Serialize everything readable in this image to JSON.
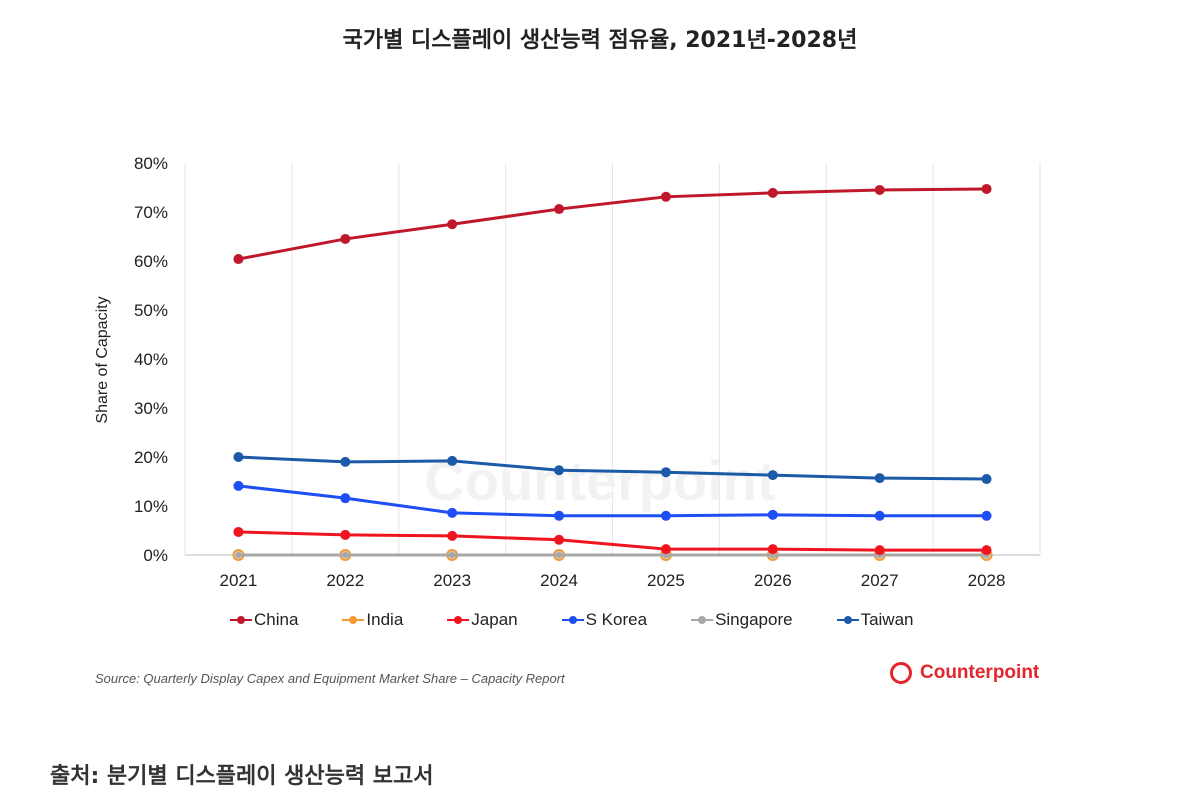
{
  "title": "국가별 디스플레이 생산능력 점유율, 2021년-2028년",
  "caption": "출처: 분기별 디스플레이 생산능력 보고서",
  "source": "Source: Quarterly Display Capex and Equipment Market Share – Capacity Report",
  "brand": "Counterpoint",
  "chart_data": {
    "type": "line",
    "title": "국가별 디스플레이 생산능력 점유율, 2021년-2028년",
    "xlabel": "",
    "ylabel": "Share of Capacity",
    "ylim": [
      0,
      80
    ],
    "yticks": [
      "0%",
      "10%",
      "20%",
      "30%",
      "40%",
      "50%",
      "60%",
      "70%",
      "80%"
    ],
    "x": [
      "2021",
      "2022",
      "2023",
      "2024",
      "2025",
      "2026",
      "2027",
      "2028"
    ],
    "legend_position": "bottom",
    "grid": "vertical",
    "series": [
      {
        "name": "China",
        "color": "#c0182b",
        "values": [
          60.4,
          64.5,
          67.5,
          70.6,
          73.1,
          73.9,
          74.5,
          74.7
        ]
      },
      {
        "name": "India",
        "color": "#f59a33",
        "values": [
          0,
          0,
          0,
          0,
          0,
          0,
          0,
          0
        ]
      },
      {
        "name": "Japan",
        "color": "#f0141e",
        "values": [
          4.7,
          4.1,
          3.9,
          3.1,
          1.2,
          1.2,
          1.0,
          1.0
        ]
      },
      {
        "name": "S Korea",
        "color": "#1e4ff5",
        "values": [
          14.1,
          11.6,
          8.6,
          8.0,
          8.0,
          8.2,
          8.0,
          8.0
        ]
      },
      {
        "name": "Singapore",
        "color": "#a8a8a8",
        "values": [
          0,
          0,
          0,
          0,
          0,
          0,
          0,
          0
        ]
      },
      {
        "name": "Taiwan",
        "color": "#1a5aa6",
        "values": [
          20.0,
          19.0,
          19.2,
          17.3,
          16.9,
          16.3,
          15.7,
          15.5
        ]
      }
    ]
  }
}
